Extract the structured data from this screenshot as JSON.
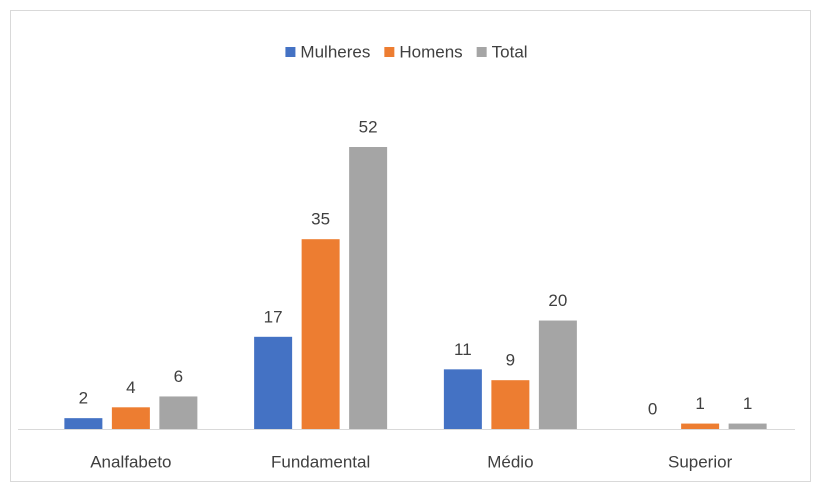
{
  "chart_data": {
    "type": "bar",
    "categories": [
      "Analfabeto",
      "Fundamental",
      "Médio",
      "Superior"
    ],
    "series": [
      {
        "name": "Mulheres",
        "color": "#4472c4",
        "values": [
          2,
          17,
          11,
          0
        ]
      },
      {
        "name": "Homens",
        "color": "#ed7d31",
        "values": [
          4,
          35,
          9,
          1
        ]
      },
      {
        "name": "Total",
        "color": "#a5a5a5",
        "values": [
          6,
          52,
          20,
          1
        ]
      }
    ],
    "legend": "top"
  }
}
